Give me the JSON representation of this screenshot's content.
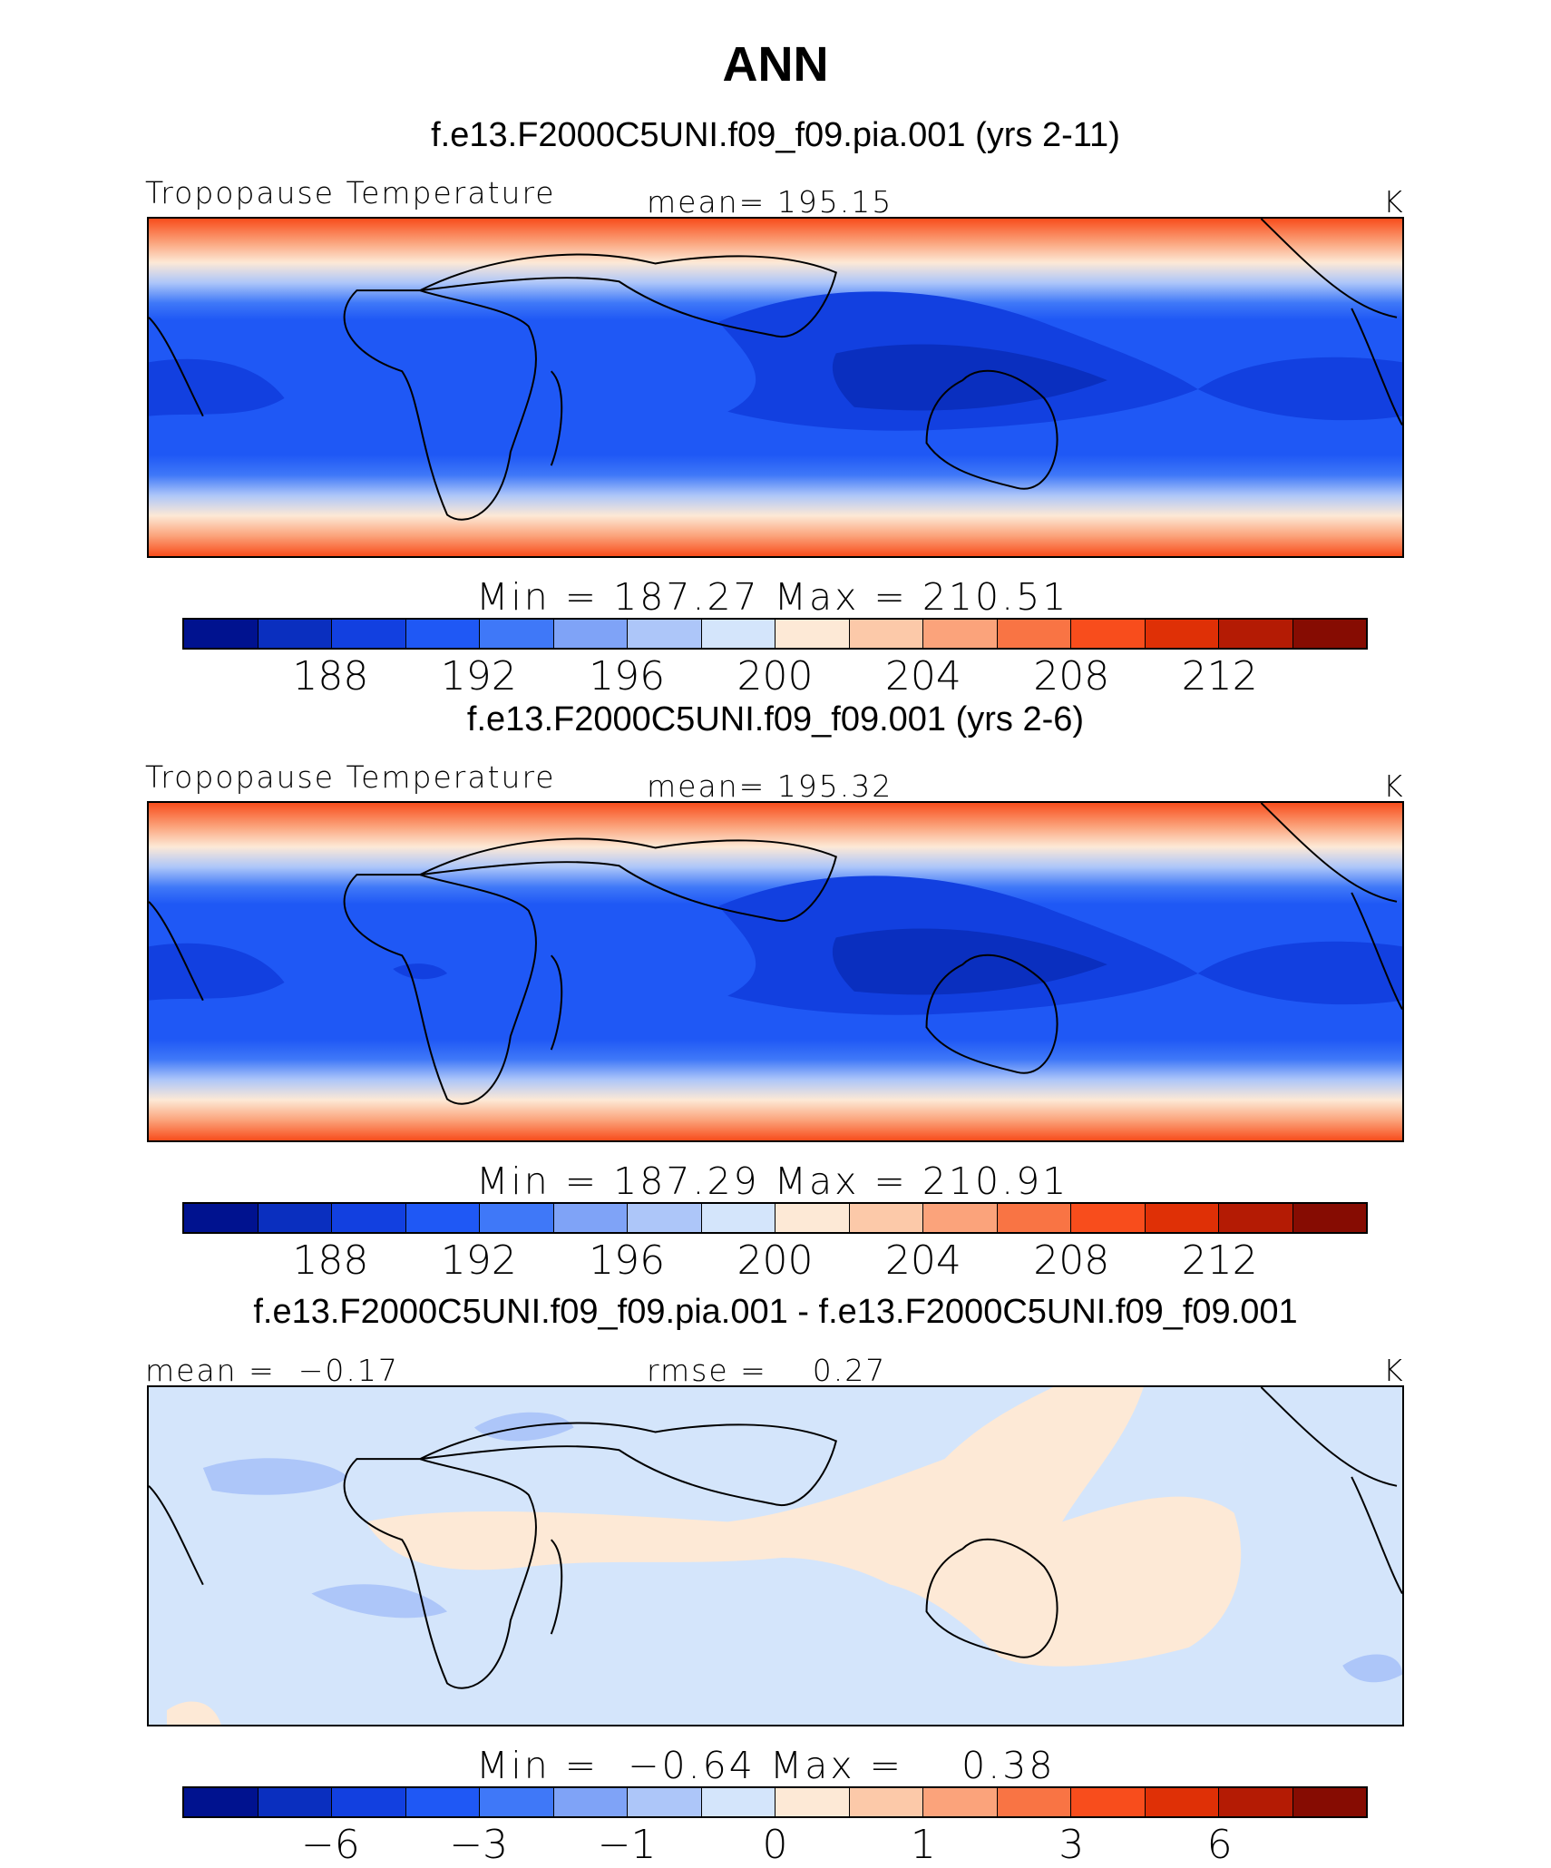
{
  "title": "ANN",
  "panels": [
    {
      "case_title": "f.e13.F2000C5UNI.f09_f09.pia.001 (yrs 2-11)",
      "left_label": "Tropopause Temperature",
      "center_label": "mean= 195.15",
      "units": "K",
      "minmax": "Min = 187.27 Max = 210.51",
      "ticks": [
        "188",
        "192",
        "196",
        "200",
        "204",
        "208",
        "212"
      ]
    },
    {
      "case_title": "f.e13.F2000C5UNI.f09_f09.001 (yrs 2-6)",
      "left_label": "Tropopause Temperature",
      "center_label": "mean= 195.32",
      "units": "K",
      "minmax": "Min = 187.29 Max = 210.91",
      "ticks": [
        "188",
        "192",
        "196",
        "200",
        "204",
        "208",
        "212"
      ]
    },
    {
      "case_title": "f.e13.F2000C5UNI.f09_f09.pia.001 - f.e13.F2000C5UNI.f09_f09.001",
      "left_label": "mean =  −0.17",
      "center_label": "rmse =    0.27",
      "units": "K",
      "minmax": "Min =  −0.64 Max =    0.38",
      "ticks": [
        "−6",
        "−3",
        "−1",
        "0",
        "1",
        "3",
        "6"
      ]
    }
  ],
  "colorbar_colors": [
    "#00128f",
    "#0a2fbf",
    "#1240e0",
    "#1f58f5",
    "#3f78f8",
    "#7fa3f7",
    "#adc6f9",
    "#d4e5fb",
    "#fde9d6",
    "#fcc9a9",
    "#fba37b",
    "#f97444",
    "#f84d1c",
    "#df3006",
    "#b41b04",
    "#860c02"
  ],
  "field_colors": {
    "cold_core": "#1f3fd4",
    "cold": "#1f58f5",
    "cool": "#3f78f8",
    "diff_bg": "#d4e5fb",
    "diff_pos": "#fde9d6",
    "diff_neg": "#adc6f9"
  }
}
